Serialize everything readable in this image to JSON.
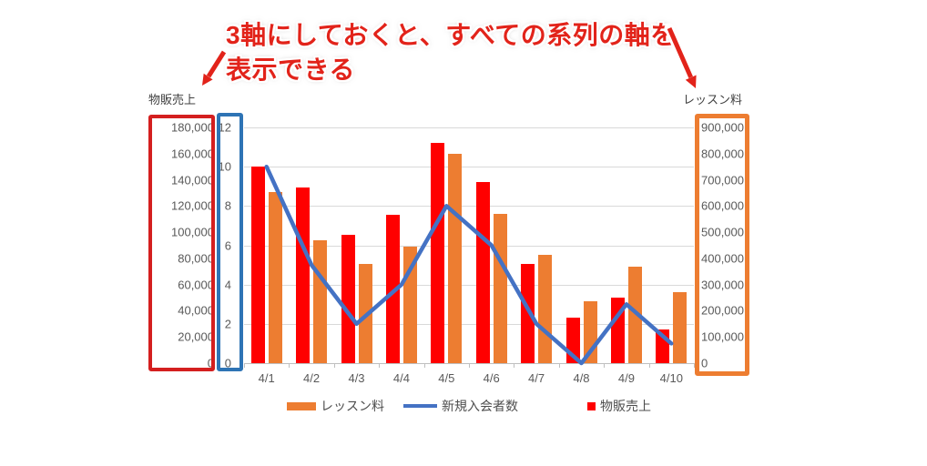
{
  "annotation": {
    "line1": "3軸にしておくと、すべての系列の軸を",
    "line2": "表示できる"
  },
  "axis_titles": {
    "left": "物販売上",
    "right": "レッスン料"
  },
  "colors": {
    "bar_red": "#ff0000",
    "bar_orange": "#ed7d31",
    "line_blue": "#4472c4",
    "box_red": "#d41f1f",
    "box_blue": "#2e74b5",
    "box_orange": "#ed7d31",
    "gridline": "#d9d9d9",
    "axis_line": "#bfbfbf",
    "tick_text": "#595959",
    "annotation_red": "#e2231a"
  },
  "legend": [
    {
      "label": "レッスン料",
      "swatch": "bar-swatch-orange"
    },
    {
      "label": "新規入会者数",
      "swatch": "line-swatch-blue"
    },
    {
      "label": "物販売上",
      "swatch": "square-swatch-red"
    }
  ],
  "chart_data": {
    "type": "combo-bar-line",
    "categories": [
      "4/1",
      "4/2",
      "4/3",
      "4/4",
      "4/5",
      "4/6",
      "4/7",
      "4/8",
      "4/9",
      "4/10"
    ],
    "series": [
      {
        "name": "物販売上",
        "type": "bar",
        "axis": "left",
        "color": "#ff0000",
        "values": [
          150000,
          134000,
          98000,
          113000,
          168000,
          138000,
          76000,
          35000,
          50000,
          26000
        ]
      },
      {
        "name": "レッスン料",
        "type": "bar",
        "axis": "right",
        "color": "#ed7d31",
        "values": [
          655000,
          470000,
          380000,
          445000,
          800000,
          570000,
          415000,
          235000,
          370000,
          270000
        ]
      },
      {
        "name": "新規入会者数",
        "type": "line",
        "axis": "secondary",
        "color": "#4472c4",
        "values": [
          10,
          5,
          2,
          4,
          8,
          6,
          2,
          0,
          3,
          1
        ]
      }
    ],
    "axes": {
      "left": {
        "title": "物販売上",
        "min": 0,
        "max": 180000,
        "step": 20000
      },
      "secondary": {
        "title": "",
        "min": 0,
        "max": 12,
        "step": 2
      },
      "right": {
        "title": "レッスン料",
        "min": 0,
        "max": 900000,
        "step": 100000
      }
    },
    "grid": "horizontal, every 2 units of secondary axis",
    "legend_position": "bottom"
  }
}
